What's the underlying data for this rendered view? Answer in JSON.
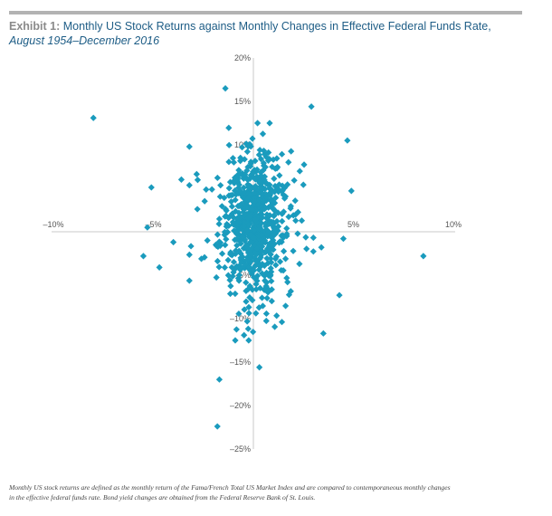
{
  "title": {
    "exhibit": "Exhibit 1:",
    "main": "Monthly US Stock Returns against Monthly Changes in Effective Federal Funds Rate,",
    "sub": "August 1954–December 2016"
  },
  "footnote": {
    "line1": "Monthly US stock returns are defined as the monthly return of the Fama/French Total US Market Index and are compared to contemporaneous monthly changes",
    "line2": "in the effective federal funds rate. Bond yield changes are obtained from the Federal Reserve Bank of St. Louis."
  },
  "colors": {
    "marker": "#1a9bbd",
    "axis": "#c8c8c8",
    "title": "#1e5d86",
    "exhibit": "#8a8a8a"
  },
  "chart_data": {
    "type": "scatter",
    "title": "Monthly US Stock Returns against Monthly Changes in Effective Federal Funds Rate, August 1954–December 2016",
    "xlabel": "",
    "ylabel": "",
    "xlim": [
      -10,
      10
    ],
    "ylim": [
      -25,
      20
    ],
    "x_ticks": [
      -10,
      -5,
      5,
      10
    ],
    "x_tick_labels": [
      "–10%",
      "–5%",
      "5%",
      "10%"
    ],
    "y_ticks": [
      20,
      15,
      10,
      -5,
      -10,
      -15,
      -20,
      -25
    ],
    "y_tick_labels": [
      "20%",
      "15%",
      "10%",
      "–5%",
      "–10%",
      "–15%",
      "–20%",
      "–25%"
    ],
    "grid": false,
    "marker": "diamond",
    "outliers": [
      {
        "x": -8.0,
        "y": 13.1
      },
      {
        "x": -1.4,
        "y": 16.5
      },
      {
        "x": 2.9,
        "y": 14.4
      },
      {
        "x": 4.7,
        "y": 10.5
      },
      {
        "x": -5.1,
        "y": 5.1
      },
      {
        "x": 4.9,
        "y": 4.7
      },
      {
        "x": -5.3,
        "y": 0.5
      },
      {
        "x": -5.5,
        "y": -2.8
      },
      {
        "x": -4.7,
        "y": -4.1
      },
      {
        "x": 8.5,
        "y": -2.8
      },
      {
        "x": 4.3,
        "y": -7.3
      },
      {
        "x": 3.5,
        "y": -11.7
      },
      {
        "x": 0.3,
        "y": -15.6
      },
      {
        "x": -1.7,
        "y": -17.0
      },
      {
        "x": -1.8,
        "y": -22.4
      },
      {
        "x": -2.8,
        "y": 2.6
      },
      {
        "x": -3.6,
        "y": 6.0
      },
      {
        "x": 4.5,
        "y": -0.8
      },
      {
        "x": 3.4,
        "y": -1.8
      },
      {
        "x": -4.0,
        "y": -1.2
      },
      {
        "x": -2.3,
        "y": -1.0
      },
      {
        "x": 2.5,
        "y": 5.4
      }
    ],
    "cluster": {
      "description": "dense cloud of roughly 700 monthly observations centred near (0%, 1%)",
      "count": 700,
      "center": [
        0.0,
        1.0
      ],
      "x_spread": 0.8,
      "y_spread": 4.3
    }
  }
}
